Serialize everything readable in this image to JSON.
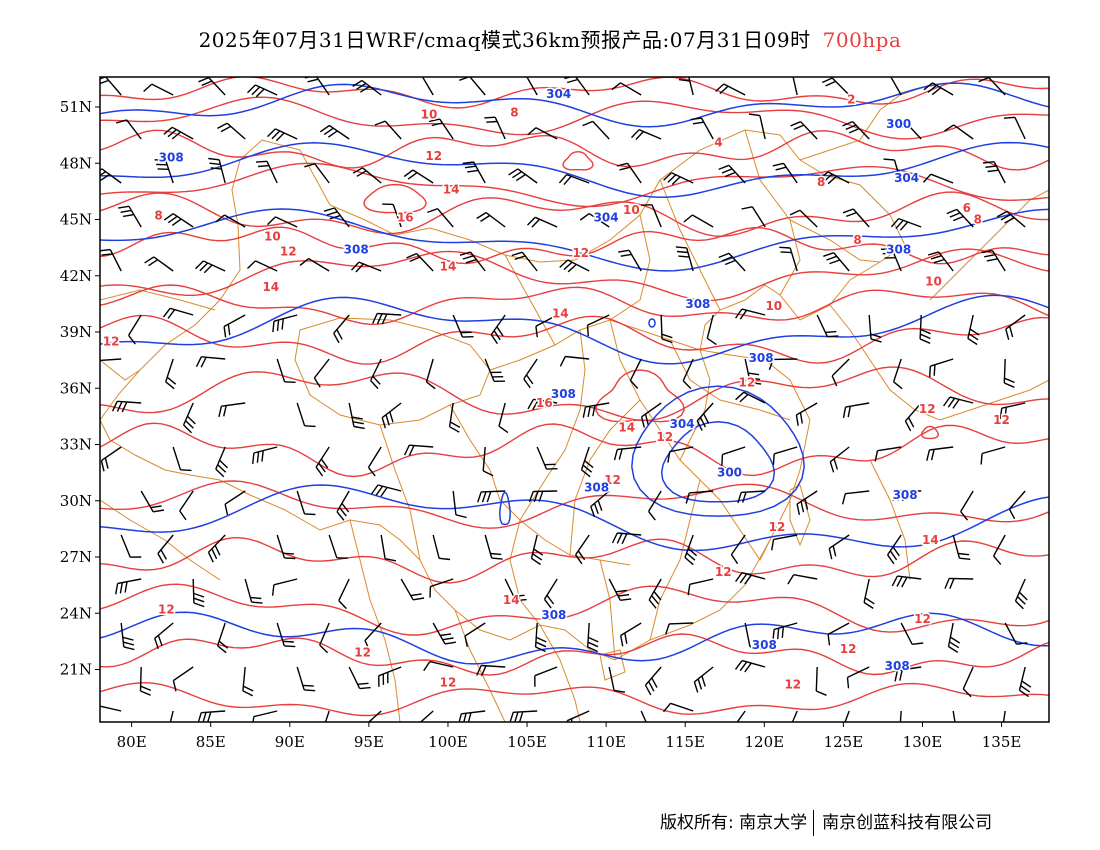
{
  "title": {
    "main": "2025年07月31日WRF/cmaq模式36km预报产品:07月31日09时",
    "level": "700hpa"
  },
  "axes": {
    "lat_labels": [
      "51N",
      "48N",
      "45N",
      "42N",
      "39N",
      "36N",
      "33N",
      "30N",
      "27N",
      "24N",
      "21N"
    ],
    "lon_labels": [
      "80E",
      "85E",
      "90E",
      "95E",
      "100E",
      "105E",
      "110E",
      "115E",
      "120E",
      "125E",
      "130E",
      "135E"
    ]
  },
  "colors": {
    "temperature": "#e83e3e",
    "geopotential": "#1f3fe0",
    "borders": "#d98a2b",
    "wind": "#000000"
  },
  "contour_labels": {
    "geopotential": [
      {
        "text": "304",
        "lon": 107.0,
        "lat": 51.7
      },
      {
        "text": "300",
        "lon": 128.5,
        "lat": 50.1
      },
      {
        "text": "308",
        "lon": 82.5,
        "lat": 48.3
      },
      {
        "text": "304",
        "lon": 129.0,
        "lat": 47.2
      },
      {
        "text": "304",
        "lon": 110.0,
        "lat": 45.1
      },
      {
        "text": "308",
        "lon": 94.2,
        "lat": 43.4
      },
      {
        "text": "308",
        "lon": 128.5,
        "lat": 43.4
      },
      {
        "text": "308",
        "lon": 115.8,
        "lat": 40.5
      },
      {
        "text": "308",
        "lon": 119.8,
        "lat": 37.6
      },
      {
        "text": "308",
        "lon": 107.3,
        "lat": 35.7
      },
      {
        "text": "304",
        "lon": 114.8,
        "lat": 34.1
      },
      {
        "text": "300",
        "lon": 117.8,
        "lat": 31.5
      },
      {
        "text": "308",
        "lon": 109.4,
        "lat": 30.7
      },
      {
        "text": "308",
        "lon": 128.9,
        "lat": 30.3
      },
      {
        "text": "308",
        "lon": 106.7,
        "lat": 23.9
      },
      {
        "text": "308",
        "lon": 120.0,
        "lat": 22.3
      },
      {
        "text": "308",
        "lon": 128.4,
        "lat": 21.2
      }
    ],
    "temperature": [
      {
        "text": "2",
        "lon": 125.5,
        "lat": 51.4
      },
      {
        "text": "10",
        "lon": 98.8,
        "lat": 50.6
      },
      {
        "text": "8",
        "lon": 104.2,
        "lat": 50.7
      },
      {
        "text": "4",
        "lon": 117.1,
        "lat": 49.1
      },
      {
        "text": "12",
        "lon": 99.1,
        "lat": 48.4
      },
      {
        "text": "14",
        "lon": 100.2,
        "lat": 46.6
      },
      {
        "text": "8",
        "lon": 123.6,
        "lat": 47.0
      },
      {
        "text": "16",
        "lon": 97.3,
        "lat": 45.1
      },
      {
        "text": "8",
        "lon": 81.7,
        "lat": 45.2
      },
      {
        "text": "10",
        "lon": 111.6,
        "lat": 45.5
      },
      {
        "text": "6",
        "lon": 132.8,
        "lat": 45.6
      },
      {
        "text": "8",
        "lon": 133.5,
        "lat": 45.0
      },
      {
        "text": "10",
        "lon": 88.9,
        "lat": 44.1
      },
      {
        "text": "8",
        "lon": 125.9,
        "lat": 43.9
      },
      {
        "text": "12",
        "lon": 89.9,
        "lat": 43.3
      },
      {
        "text": "12",
        "lon": 108.4,
        "lat": 43.2
      },
      {
        "text": "14",
        "lon": 100.0,
        "lat": 42.5
      },
      {
        "text": "10",
        "lon": 130.7,
        "lat": 41.7
      },
      {
        "text": "14",
        "lon": 88.8,
        "lat": 41.4
      },
      {
        "text": "10",
        "lon": 120.6,
        "lat": 40.4
      },
      {
        "text": "14",
        "lon": 107.1,
        "lat": 40.0
      },
      {
        "text": "12",
        "lon": 78.7,
        "lat": 38.5
      },
      {
        "text": "12",
        "lon": 118.9,
        "lat": 36.3
      },
      {
        "text": "16",
        "lon": 106.1,
        "lat": 35.2
      },
      {
        "text": "12",
        "lon": 130.3,
        "lat": 34.9
      },
      {
        "text": "12",
        "lon": 135.0,
        "lat": 34.3
      },
      {
        "text": "14",
        "lon": 111.3,
        "lat": 33.9
      },
      {
        "text": "12",
        "lon": 113.7,
        "lat": 33.4
      },
      {
        "text": "12",
        "lon": 110.4,
        "lat": 31.1
      },
      {
        "text": "12",
        "lon": 120.8,
        "lat": 28.6
      },
      {
        "text": "14",
        "lon": 130.5,
        "lat": 27.9
      },
      {
        "text": "12",
        "lon": 117.4,
        "lat": 26.2
      },
      {
        "text": "14",
        "lon": 104.0,
        "lat": 24.7
      },
      {
        "text": "12",
        "lon": 82.2,
        "lat": 24.2
      },
      {
        "text": "12",
        "lon": 130.0,
        "lat": 23.7
      },
      {
        "text": "12",
        "lon": 125.3,
        "lat": 22.1
      },
      {
        "text": "12",
        "lon": 94.6,
        "lat": 21.9
      },
      {
        "text": "12",
        "lon": 100.0,
        "lat": 20.3
      },
      {
        "text": "12",
        "lon": 121.8,
        "lat": 20.2
      }
    ]
  },
  "footer": {
    "left": "版权所有: 南京大学",
    "right": "南京创蓝科技有限公司"
  }
}
